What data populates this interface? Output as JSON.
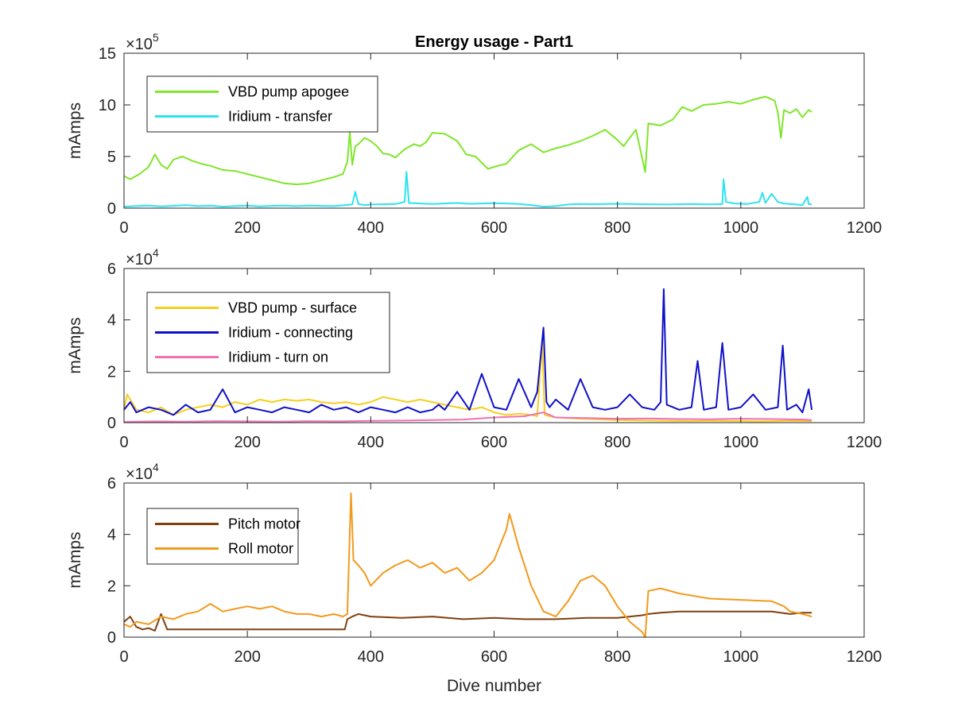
{
  "chart_data": [
    {
      "type": "line",
      "title": "Energy usage - Part1",
      "xlabel": "",
      "ylabel": "mAmps",
      "xlim": [
        0,
        1200
      ],
      "ylim": [
        0,
        1500000
      ],
      "xticks": [
        "0",
        "200",
        "400",
        "600",
        "800",
        "1000",
        "1200"
      ],
      "yticks": [
        "0",
        "5",
        "10",
        "15"
      ],
      "exponent_base": "×10",
      "exponent_power": "5",
      "legend_position": "top-left",
      "series": [
        {
          "name": "VBD pump apogee",
          "color": "#7fe62c",
          "x": [
            0,
            10,
            25,
            40,
            50,
            60,
            70,
            80,
            95,
            110,
            125,
            140,
            160,
            180,
            200,
            220,
            240,
            260,
            280,
            300,
            320,
            340,
            355,
            362,
            366,
            370,
            375,
            380,
            390,
            400,
            410,
            420,
            430,
            440,
            455,
            470,
            480,
            490,
            500,
            520,
            540,
            555,
            570,
            580,
            590,
            600,
            620,
            640,
            660,
            680,
            700,
            720,
            740,
            760,
            780,
            800,
            810,
            830,
            845,
            850,
            870,
            890,
            905,
            920,
            940,
            960,
            980,
            1000,
            1020,
            1040,
            1055,
            1060,
            1065,
            1070,
            1080,
            1090,
            1100,
            1110,
            1115
          ],
          "values": [
            310000,
            280000,
            330000,
            400000,
            520000,
            420000,
            380000,
            470000,
            500000,
            460000,
            430000,
            410000,
            370000,
            360000,
            330000,
            300000,
            270000,
            240000,
            230000,
            240000,
            270000,
            300000,
            330000,
            450000,
            740000,
            420000,
            600000,
            620000,
            680000,
            650000,
            600000,
            530000,
            520000,
            490000,
            570000,
            620000,
            600000,
            640000,
            730000,
            720000,
            650000,
            520000,
            500000,
            440000,
            380000,
            400000,
            430000,
            560000,
            620000,
            540000,
            580000,
            610000,
            650000,
            700000,
            760000,
            660000,
            600000,
            760000,
            350000,
            820000,
            800000,
            860000,
            980000,
            940000,
            1000000,
            1010000,
            1030000,
            1010000,
            1050000,
            1080000,
            1040000,
            930000,
            680000,
            950000,
            920000,
            960000,
            880000,
            950000,
            930000
          ]
        },
        {
          "name": "Iridium - transfer",
          "color": "#2de3f0",
          "x": [
            0,
            20,
            40,
            60,
            80,
            100,
            120,
            140,
            160,
            180,
            200,
            220,
            240,
            260,
            280,
            300,
            320,
            340,
            360,
            370,
            375,
            380,
            390,
            400,
            420,
            440,
            455,
            458,
            462,
            480,
            500,
            520,
            540,
            560,
            580,
            600,
            620,
            640,
            660,
            680,
            700,
            720,
            740,
            760,
            780,
            800,
            820,
            840,
            860,
            880,
            900,
            920,
            940,
            960,
            970,
            972,
            976,
            990,
            1010,
            1030,
            1035,
            1040,
            1050,
            1060,
            1070,
            1080,
            1090,
            1100,
            1108,
            1110,
            1115
          ],
          "values": [
            15000,
            20000,
            25000,
            18000,
            22000,
            30000,
            20000,
            25000,
            15000,
            20000,
            25000,
            18000,
            22000,
            25000,
            20000,
            25000,
            22000,
            20000,
            30000,
            35000,
            160000,
            40000,
            30000,
            35000,
            38000,
            40000,
            60000,
            350000,
            50000,
            45000,
            40000,
            45000,
            50000,
            42000,
            45000,
            48000,
            45000,
            40000,
            30000,
            15000,
            20000,
            35000,
            40000,
            38000,
            40000,
            42000,
            40000,
            38000,
            36000,
            35000,
            38000,
            40000,
            36000,
            38000,
            40000,
            280000,
            60000,
            45000,
            40000,
            60000,
            150000,
            50000,
            140000,
            60000,
            45000,
            40000,
            35000,
            30000,
            110000,
            40000,
            35000
          ]
        }
      ]
    },
    {
      "type": "line",
      "title": "",
      "xlabel": "",
      "ylabel": "mAmps",
      "xlim": [
        0,
        1200
      ],
      "ylim": [
        0,
        60000
      ],
      "xticks": [
        "0",
        "200",
        "400",
        "600",
        "800",
        "1000",
        "1200"
      ],
      "yticks": [
        "0",
        "2",
        "4",
        "6"
      ],
      "exponent_base": "×10",
      "exponent_power": "4",
      "legend_position": "top-left",
      "series": [
        {
          "name": "VBD pump - surface",
          "color": "#f5cf1f",
          "x": [
            0,
            5,
            10,
            20,
            40,
            60,
            80,
            100,
            120,
            140,
            160,
            180,
            200,
            220,
            240,
            260,
            280,
            300,
            320,
            340,
            360,
            380,
            400,
            420,
            440,
            460,
            480,
            500,
            520,
            540,
            560,
            580,
            600,
            620,
            640,
            660,
            670,
            678,
            682,
            690,
            700,
            720,
            740,
            760,
            780,
            800,
            840,
            880,
            920,
            960,
            1000,
            1040,
            1080,
            1115
          ],
          "values": [
            5000,
            11000,
            9000,
            5000,
            4000,
            6000,
            3000,
            5000,
            6000,
            7000,
            6000,
            8000,
            7000,
            9000,
            8000,
            9000,
            8500,
            9000,
            8000,
            7500,
            8000,
            7000,
            8000,
            10000,
            9000,
            8000,
            9000,
            8000,
            7000,
            6000,
            5000,
            6000,
            4000,
            3000,
            3500,
            3000,
            2500,
            32000,
            3000,
            2500,
            2000,
            1800,
            1500,
            1400,
            1200,
            1000,
            800,
            700,
            600,
            700,
            600,
            500,
            700,
            600
          ]
        },
        {
          "name": "Iridium - connecting",
          "color": "#1010c8",
          "x": [
            0,
            10,
            20,
            40,
            60,
            80,
            100,
            120,
            140,
            160,
            180,
            200,
            220,
            240,
            260,
            280,
            300,
            320,
            340,
            360,
            380,
            400,
            420,
            440,
            460,
            480,
            500,
            510,
            520,
            540,
            560,
            580,
            600,
            620,
            640,
            660,
            670,
            680,
            685,
            690,
            700,
            720,
            740,
            760,
            780,
            800,
            820,
            840,
            860,
            870,
            875,
            880,
            890,
            900,
            920,
            930,
            940,
            960,
            970,
            980,
            1000,
            1020,
            1040,
            1060,
            1068,
            1075,
            1090,
            1100,
            1110,
            1115
          ],
          "values": [
            5000,
            8000,
            4000,
            6000,
            5000,
            3000,
            7000,
            4000,
            5000,
            13000,
            4000,
            6000,
            5000,
            4000,
            6000,
            5000,
            4000,
            7000,
            5000,
            6000,
            4000,
            6000,
            5000,
            4000,
            6000,
            4000,
            5000,
            7000,
            5000,
            12000,
            5000,
            19000,
            6000,
            5000,
            17000,
            6000,
            12000,
            37000,
            8000,
            6000,
            9000,
            5000,
            17000,
            6000,
            5000,
            6000,
            11000,
            6000,
            5000,
            8000,
            52000,
            7000,
            6000,
            5000,
            6000,
            24000,
            5000,
            6000,
            31000,
            5000,
            6000,
            11000,
            5000,
            6000,
            30000,
            5000,
            7000,
            4000,
            13000,
            5000
          ]
        },
        {
          "name": "Iridium - turn on",
          "color": "#f071b6",
          "x": [
            0,
            50,
            100,
            150,
            200,
            250,
            300,
            350,
            400,
            450,
            500,
            550,
            600,
            650,
            680,
            700,
            750,
            800,
            850,
            900,
            950,
            1000,
            1050,
            1100,
            1115
          ],
          "values": [
            300,
            500,
            400,
            600,
            500,
            400,
            600,
            500,
            700,
            800,
            1000,
            1200,
            2000,
            2500,
            4000,
            2000,
            1800,
            1500,
            1600,
            1400,
            1300,
            1500,
            1400,
            1200,
            1000
          ]
        }
      ]
    },
    {
      "type": "line",
      "title": "",
      "xlabel": "Dive number",
      "ylabel": "mAmps",
      "xlim": [
        0,
        1200
      ],
      "ylim": [
        0,
        60000
      ],
      "xticks": [
        "0",
        "200",
        "400",
        "600",
        "800",
        "1000",
        "1200"
      ],
      "yticks": [
        "0",
        "2",
        "4",
        "6"
      ],
      "exponent_base": "×10",
      "exponent_power": "4",
      "legend_position": "top-left",
      "series": [
        {
          "name": "Pitch motor",
          "color": "#7f4010",
          "x": [
            0,
            10,
            20,
            30,
            40,
            50,
            60,
            70,
            100,
            150,
            200,
            250,
            300,
            350,
            358,
            362,
            370,
            380,
            400,
            450,
            500,
            550,
            600,
            650,
            700,
            750,
            800,
            820,
            840,
            850,
            870,
            900,
            950,
            1000,
            1050,
            1080,
            1100,
            1115
          ],
          "values": [
            6000,
            8000,
            4000,
            3000,
            3500,
            2500,
            9000,
            3000,
            3000,
            3000,
            3000,
            3000,
            3000,
            3000,
            3000,
            7000,
            8000,
            9000,
            8000,
            7500,
            8000,
            7000,
            7500,
            7000,
            7000,
            7500,
            7500,
            8000,
            8500,
            9000,
            9500,
            10000,
            10000,
            10000,
            10000,
            9000,
            9500,
            9500
          ]
        },
        {
          "name": "Roll motor",
          "color": "#f29a1d",
          "x": [
            0,
            10,
            20,
            40,
            60,
            80,
            100,
            120,
            140,
            160,
            180,
            200,
            220,
            240,
            260,
            280,
            300,
            320,
            340,
            355,
            362,
            368,
            372,
            380,
            390,
            400,
            420,
            440,
            460,
            480,
            500,
            520,
            540,
            560,
            580,
            600,
            620,
            625,
            640,
            660,
            680,
            700,
            720,
            740,
            760,
            780,
            800,
            820,
            840,
            845,
            850,
            870,
            900,
            950,
            1000,
            1050,
            1070,
            1080,
            1100,
            1115
          ],
          "values": [
            5000,
            4000,
            6000,
            5000,
            8000,
            7000,
            9000,
            10000,
            13000,
            10000,
            11000,
            12000,
            11000,
            12000,
            10000,
            9000,
            9000,
            8000,
            9000,
            8000,
            9000,
            56000,
            30000,
            28000,
            25000,
            20000,
            25000,
            28000,
            30000,
            27000,
            29000,
            25000,
            27000,
            22000,
            25000,
            30000,
            42000,
            48000,
            35000,
            20000,
            10000,
            8000,
            14000,
            22000,
            24000,
            20000,
            12000,
            6000,
            2000,
            0,
            18000,
            19000,
            17000,
            15000,
            14500,
            14000,
            12000,
            10000,
            9000,
            8000
          ]
        }
      ]
    }
  ]
}
